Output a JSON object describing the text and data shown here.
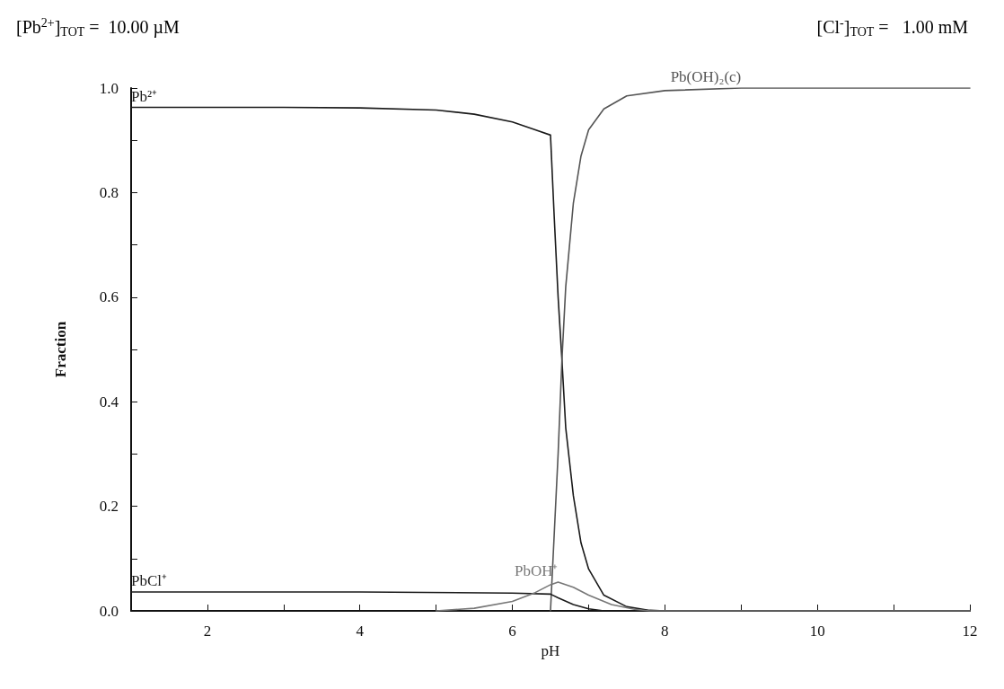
{
  "chart_data": {
    "type": "line",
    "xlabel": "pH",
    "ylabel": "Fraction",
    "annotations": [
      "[Pb$^{2+}$]$_{TOT}$ =  10.00 µM",
      "[Cl$^{-}$]$_{TOT}$ =   1.00 mM"
    ],
    "xlim": [
      1,
      12
    ],
    "ylim": [
      0,
      1
    ],
    "xticks": [
      {
        "value": 1,
        "label": null
      },
      2,
      {
        "value": 3,
        "label": null
      },
      4,
      {
        "value": 5,
        "label": null
      },
      6,
      {
        "value": 7,
        "label": null
      },
      8,
      {
        "value": 9,
        "label": null
      },
      10,
      {
        "value": 11,
        "label": null
      },
      12
    ],
    "yticks": [
      {
        "value": 0,
        "label": "0.0"
      },
      {
        "value": 0.1,
        "label": null
      },
      0.2,
      {
        "value": 0.3,
        "label": null
      },
      0.4,
      {
        "value": 0.5,
        "label": null
      },
      0.6,
      {
        "value": 0.7,
        "label": null
      },
      0.8,
      {
        "value": 0.9,
        "label": null
      },
      {
        "value": 1,
        "label": "1.0"
      }
    ],
    "grid": false,
    "legend": false,
    "marker": "none",
    "line_style": "solid",
    "series": [
      {
        "name": "Pb²⁺",
        "color": "#1a1a1a",
        "x": [
          1,
          2,
          3,
          4,
          5,
          5.5,
          6,
          6.3,
          6.5,
          6.55,
          6.6,
          6.65,
          6.7,
          6.8,
          6.9,
          7,
          7.2,
          7.5,
          7.8,
          8,
          12
        ],
        "values": [
          0.963,
          0.963,
          0.963,
          0.962,
          0.958,
          0.95,
          0.935,
          0.92,
          0.91,
          0.75,
          0.6,
          0.48,
          0.35,
          0.22,
          0.13,
          0.08,
          0.03,
          0.008,
          0.001,
          0,
          0
        ]
      },
      {
        "name": "Pb(OH)₂(c)",
        "color": "#555555",
        "x": [
          6.5,
          6.55,
          6.6,
          6.65,
          6.7,
          6.8,
          6.9,
          7,
          7.2,
          7.5,
          8,
          9,
          10,
          11,
          12
        ],
        "values": [
          0,
          0.15,
          0.3,
          0.48,
          0.62,
          0.78,
          0.87,
          0.92,
          0.96,
          0.985,
          0.995,
          1,
          1,
          1,
          1
        ]
      },
      {
        "name": "PbCl⁺",
        "color": "#1a1a1a",
        "x": [
          1,
          2,
          4,
          6,
          6.5,
          6.6,
          6.8,
          7,
          7.2,
          12
        ],
        "values": [
          0.036,
          0.036,
          0.036,
          0.034,
          0.032,
          0.025,
          0.012,
          0.004,
          0,
          0
        ]
      },
      {
        "name": "PbOH⁺",
        "color": "#777777",
        "x": [
          5,
          5.5,
          6,
          6.3,
          6.5,
          6.6,
          6.8,
          7,
          7.3,
          7.6,
          7.8,
          12
        ],
        "values": [
          0,
          0.005,
          0.018,
          0.035,
          0.05,
          0.055,
          0.045,
          0.03,
          0.012,
          0.003,
          0,
          0
        ]
      }
    ]
  }
}
